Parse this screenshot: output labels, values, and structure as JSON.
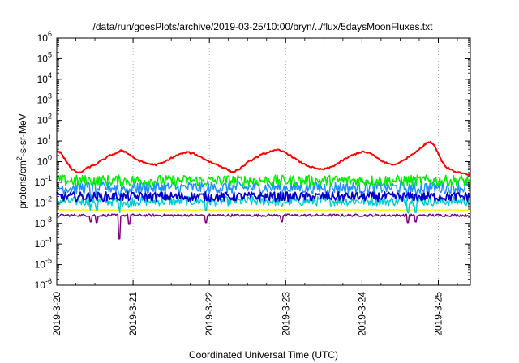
{
  "chart_data": {
    "type": "line",
    "title": "/data/run/goesPlots/archive/2019-03-25/10:00/bryn/../flux/5daysMoonFluxes.txt",
    "xlabel": "Coordinated Universal Time (UTC)",
    "ylabel": {
      "pre": "protons/cm",
      "sup": "2",
      "post": "-s-sr-MeV"
    },
    "y_scale": "log",
    "ylim": [
      1e-06,
      1000000.0
    ],
    "xlim": [
      "2019-03-20 00:00",
      "2019-03-25 10:00"
    ],
    "x_unit": "days",
    "x_ticks": [
      {
        "label": "2019-3-20",
        "day": 0
      },
      {
        "label": "2019-3-21",
        "day": 1
      },
      {
        "label": "2019-3-22",
        "day": 2
      },
      {
        "label": "2019-3-23",
        "day": 3
      },
      {
        "label": "2019-3-24",
        "day": 4
      },
      {
        "label": "2019-3-25",
        "day": 5
      }
    ],
    "y_ticks": [
      {
        "base": "10",
        "exp": "6",
        "value": 1000000.0
      },
      {
        "base": "10",
        "exp": "5",
        "value": 100000.0
      },
      {
        "base": "10",
        "exp": "4",
        "value": 10000.0
      },
      {
        "base": "10",
        "exp": "3",
        "value": 1000.0
      },
      {
        "base": "10",
        "exp": "2",
        "value": 100.0
      },
      {
        "base": "10",
        "exp": "1",
        "value": 10.0
      },
      {
        "base": "10",
        "exp": "0",
        "value": 1.0
      },
      {
        "base": "10",
        "exp": "-1",
        "value": 0.1
      },
      {
        "base": "10",
        "exp": "-2",
        "value": 0.01
      },
      {
        "base": "10",
        "exp": "-3",
        "value": 0.001
      },
      {
        "base": "10",
        "exp": "-4",
        "value": 0.0001
      },
      {
        "base": "10",
        "exp": "-5",
        "value": 1e-05
      },
      {
        "base": "10",
        "exp": "-6",
        "value": 1e-06
      }
    ],
    "grid": true,
    "grid_style": "dotted vertical at day ticks",
    "legend": "none",
    "series": [
      {
        "color": "#ff0000",
        "x": [
          0,
          0.05,
          0.1,
          0.15,
          0.2,
          0.3,
          0.4,
          0.5,
          0.6,
          0.7,
          0.8,
          0.85,
          0.9,
          0.95,
          1.0,
          1.1,
          1.2,
          1.3,
          1.4,
          1.5,
          1.6,
          1.7,
          1.8,
          1.9,
          2.0,
          2.1,
          2.2,
          2.3,
          2.4,
          2.5,
          2.6,
          2.7,
          2.8,
          2.9,
          3.0,
          3.1,
          3.2,
          3.3,
          3.4,
          3.5,
          3.6,
          3.7,
          3.8,
          3.9,
          4.0,
          4.1,
          4.2,
          4.3,
          4.4,
          4.5,
          4.6,
          4.7,
          4.8,
          4.85,
          4.9,
          4.95,
          5.0,
          5.05,
          5.1,
          5.2,
          5.3,
          5.4,
          5.42
        ],
        "y": [
          3.2,
          2.8,
          1.4,
          0.8,
          0.4,
          0.28,
          0.5,
          0.7,
          1.2,
          2.0,
          2.8,
          3.5,
          3.0,
          2.2,
          1.6,
          1.0,
          0.8,
          0.7,
          0.9,
          1.5,
          2.2,
          2.9,
          2.4,
          1.6,
          1.0,
          0.7,
          0.5,
          0.3,
          0.45,
          0.9,
          1.5,
          2.3,
          3.2,
          3.6,
          2.8,
          1.6,
          0.9,
          0.6,
          0.45,
          0.42,
          0.55,
          0.9,
          1.5,
          2.3,
          3.0,
          2.6,
          1.5,
          0.9,
          0.7,
          0.9,
          1.6,
          3.0,
          5.5,
          8.5,
          9.0,
          6.0,
          2.5,
          1.0,
          0.55,
          0.35,
          0.28,
          0.22,
          0.25
        ]
      },
      {
        "color": "#00ee00",
        "x": [
          0,
          5.42
        ],
        "y": [
          0.12,
          0.12
        ],
        "variation": "noisy, range approximately 0.06 to 0.2"
      },
      {
        "color": "#1e90ff",
        "x": [
          0,
          5.42
        ],
        "y": [
          0.055,
          0.055
        ],
        "variation": "noisy, range approximately 0.025 to 0.1"
      },
      {
        "color": "#0000cd",
        "x": [
          0,
          5.42
        ],
        "y": [
          0.02,
          0.02
        ],
        "variation": "noisy, range approximately 0.012 to 0.035"
      },
      {
        "color": "#00ced1",
        "x": [
          0,
          5.42
        ],
        "y": [
          0.012,
          0.012
        ],
        "variation": "noisy, range approximately 0.006 to 0.02"
      },
      {
        "color": "#ffff00",
        "x": [
          0,
          5.42
        ],
        "y": [
          0.0045,
          0.0045
        ],
        "variation": "nearly flat"
      },
      {
        "color": "#800080",
        "x": [
          0,
          5.42
        ],
        "y": [
          0.0025,
          0.0025
        ],
        "variation": "nearly flat with dips",
        "dips": [
          {
            "x": 0.45,
            "y": 0.0012
          },
          {
            "x": 0.52,
            "y": 0.0011
          },
          {
            "x": 0.82,
            "y": 0.00018
          },
          {
            "x": 0.95,
            "y": 0.0009
          },
          {
            "x": 1.95,
            "y": 0.0011
          },
          {
            "x": 2.95,
            "y": 0.0012
          },
          {
            "x": 4.6,
            "y": 0.0011
          },
          {
            "x": 4.7,
            "y": 0.0012
          }
        ]
      }
    ]
  }
}
